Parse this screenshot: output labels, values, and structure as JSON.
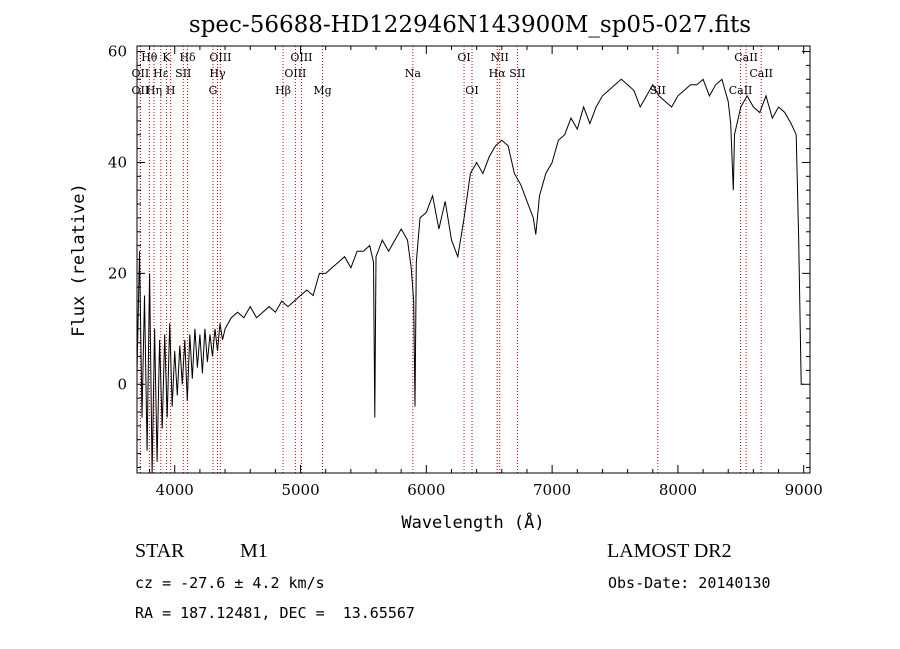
{
  "chart_data": {
    "type": "line",
    "title": "spec-56688-HD122946N143900M_sp05-027.fits",
    "xlabel": "Wavelength (Å)",
    "ylabel": "Flux (relative)",
    "xlim": [
      3700,
      9050
    ],
    "ylim": [
      -16,
      61
    ],
    "xticks": [
      4000,
      5000,
      6000,
      7000,
      8000,
      9000
    ],
    "yticks": [
      0,
      20,
      40,
      60
    ],
    "grid": false,
    "series": [
      {
        "x": [
          3700,
          3720,
          3740,
          3760,
          3780,
          3800,
          3820,
          3840,
          3860,
          3880,
          3900,
          3920,
          3940,
          3960,
          3980,
          4000,
          4020,
          4040,
          4060,
          4080,
          4100,
          4120,
          4140,
          4160,
          4180,
          4200,
          4220,
          4240,
          4260,
          4280,
          4300,
          4320,
          4340,
          4360,
          4380,
          4400,
          4450,
          4500,
          4550,
          4600,
          4650,
          4700,
          4750,
          4800,
          4850,
          4900,
          4950,
          5000,
          5050,
          5100,
          5150,
          5200,
          5250,
          5300,
          5350,
          5400,
          5450,
          5500,
          5550,
          5580,
          5590,
          5600,
          5650,
          5700,
          5750,
          5800,
          5850,
          5880,
          5900,
          5910,
          5920,
          5950,
          6000,
          6050,
          6100,
          6150,
          6200,
          6250,
          6300,
          6350,
          6400,
          6450,
          6500,
          6550,
          6600,
          6650,
          6700,
          6750,
          6800,
          6850,
          6870,
          6900,
          6950,
          7000,
          7050,
          7100,
          7150,
          7200,
          7250,
          7300,
          7350,
          7400,
          7450,
          7500,
          7550,
          7600,
          7650,
          7700,
          7750,
          7800,
          7850,
          7900,
          7950,
          8000,
          8050,
          8100,
          8150,
          8200,
          8250,
          8300,
          8350,
          8400,
          8420,
          8440,
          8450,
          8500,
          8550,
          8600,
          8650,
          8700,
          8750,
          8800,
          8850,
          8900,
          8940,
          8960,
          8980,
          9000
        ],
        "y": [
          2,
          24,
          -6,
          16,
          -12,
          20,
          -16,
          10,
          -14,
          8,
          -8,
          9,
          -6,
          11,
          -4,
          6,
          -2,
          7,
          0,
          8,
          -3,
          9,
          1,
          10,
          3,
          9,
          2,
          10,
          4,
          9,
          5,
          10,
          6,
          11,
          8,
          10,
          12,
          13,
          12,
          14,
          12,
          13,
          14,
          13,
          15,
          14,
          15,
          16,
          17,
          16,
          20,
          20,
          21,
          22,
          23,
          21,
          24,
          24,
          25,
          22,
          -6,
          23,
          26,
          24,
          26,
          28,
          26,
          21,
          15,
          -4,
          22,
          30,
          31,
          34,
          28,
          33,
          26,
          23,
          30,
          38,
          40,
          38,
          41,
          43,
          44,
          43,
          38,
          36,
          33,
          30,
          27,
          34,
          38,
          40,
          44,
          45,
          48,
          46,
          50,
          47,
          50,
          52,
          53,
          54,
          55,
          54,
          53,
          50,
          52,
          54,
          52,
          51,
          50,
          52,
          53,
          54,
          54,
          55,
          52,
          54,
          55,
          51,
          47,
          35,
          45,
          50,
          52,
          50,
          49,
          52,
          48,
          50,
          49,
          47,
          45,
          26,
          0,
          0
        ]
      }
    ],
    "line_markers": [
      {
        "name": "Hθ",
        "x": 3798,
        "row": 1
      },
      {
        "name": "OII",
        "x": 3727,
        "row": 2
      },
      {
        "name": "OII",
        "x": 3727,
        "row": 3
      },
      {
        "name": "K",
        "x": 3934,
        "row": 1
      },
      {
        "name": "Hε",
        "x": 3889,
        "row": 2
      },
      {
        "name": "Hη",
        "x": 3835,
        "row": 3
      },
      {
        "name": "H",
        "x": 3968,
        "row": 3
      },
      {
        "name": "SII",
        "x": 4068,
        "row": 2
      },
      {
        "name": "Hδ",
        "x": 4102,
        "row": 1
      },
      {
        "name": "OIII",
        "x": 4363,
        "row": 1
      },
      {
        "name": "Hγ",
        "x": 4340,
        "row": 2
      },
      {
        "name": "G",
        "x": 4304,
        "row": 3
      },
      {
        "name": "Hβ",
        "x": 4861,
        "row": 3
      },
      {
        "name": "OIII",
        "x": 5007,
        "row": 1
      },
      {
        "name": "OIII",
        "x": 4959,
        "row": 2
      },
      {
        "name": "Mg",
        "x": 5175,
        "row": 3
      },
      {
        "name": "Na",
        "x": 5893,
        "row": 2
      },
      {
        "name": "OI",
        "x": 6300,
        "row": 1
      },
      {
        "name": "OI",
        "x": 6363,
        "row": 3
      },
      {
        "name": "NII",
        "x": 6583,
        "row": 1
      },
      {
        "name": "Hα",
        "x": 6563,
        "row": 2
      },
      {
        "name": "SII",
        "x": 6724,
        "row": 2
      },
      {
        "name": "SII",
        "x": 7840,
        "row": 3
      },
      {
        "name": "CaII",
        "x": 8542,
        "row": 1
      },
      {
        "name": "CaII",
        "x": 8662,
        "row": 2
      },
      {
        "name": "CaII",
        "x": 8498,
        "row": 3
      }
    ]
  },
  "info": {
    "object_class": "STAR",
    "subclass": "M1",
    "survey": "LAMOST DR2",
    "redshift_line": "cz = -27.6 ± 4.2 km/s",
    "obs_date_line": "Obs-Date: 20140130",
    "coords_line": "RA = 187.12481, DEC =  13.65567"
  }
}
